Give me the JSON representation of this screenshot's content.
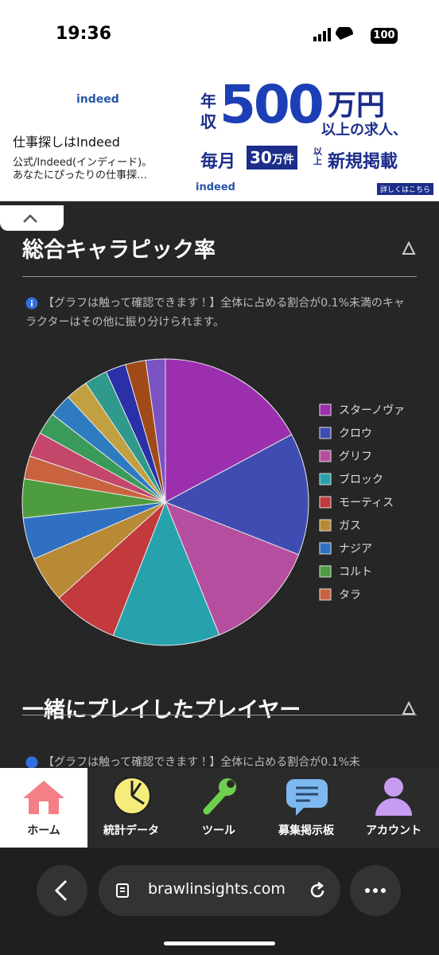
{
  "status": {
    "time": "19:36",
    "battery": "100"
  },
  "ad": {
    "brand": "indeed",
    "title": "仕事探しはIndeed",
    "lines": [
      "公式/Indeed(インディード)。",
      "あなたにぴったりの仕事探…"
    ],
    "banner": {
      "a": "年",
      "b": "収",
      "big": "500",
      "unit": "万円",
      "tail": "以上の求人、",
      "monthly": "毎月",
      "count": "30",
      "count_unit": "万件",
      "above": "以上",
      "new": "新規掲載",
      "logo": "indeed",
      "more": "詳しくはこちら"
    }
  },
  "sections": [
    {
      "title": "総合キャラピック率",
      "note": "【グラフは触って確認できます！】全体に占める割合が0.1%未満のキャラクターはその他に振り分けられます。"
    },
    {
      "title": "一緒にプレイしたプレイヤー",
      "note": "【グラフは触って確認できます！】全体に占める割合が0.1%未"
    }
  ],
  "chart_data": {
    "type": "pie",
    "categories": [
      "スターノヴァ",
      "クロウ",
      "グリフ",
      "ブロック",
      "モーティス",
      "ガス",
      "ナジア",
      "コルト",
      "タラ",
      null,
      null,
      null,
      null,
      null,
      null,
      null,
      null
    ],
    "values": [
      17.2,
      13.8,
      12.9,
      12.1,
      7.4,
      5.2,
      4.7,
      4.4,
      2.6,
      2.8,
      2.5,
      2.6,
      2.5,
      2.6,
      2.3,
      2.3,
      2.2
    ],
    "colors": [
      "#9c2fae",
      "#3f4cb2",
      "#b64ea0",
      "#27a2ad",
      "#c23a3c",
      "#b98a35",
      "#2f70c2",
      "#4d9c40",
      "#c9633f",
      "#c4466a",
      "#3a9a5a",
      "#2e7bbf",
      "#c0a040",
      "#2f9a8b",
      "#2a30a8",
      "#a04a18",
      "#7a52c2"
    ]
  },
  "nav": [
    "ホーム",
    "統計データ",
    "ツール",
    "募集掲示板",
    "アカウント"
  ],
  "browser": {
    "url": "brawlinsights.com"
  }
}
